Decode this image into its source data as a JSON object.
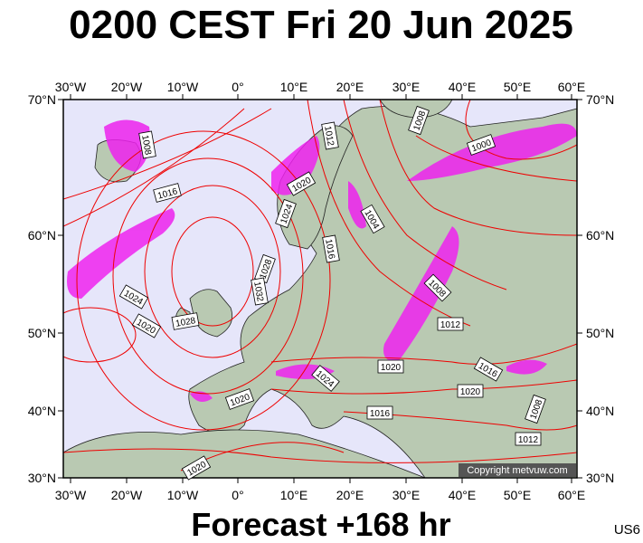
{
  "header": {
    "title": "0200 CEST Fri 20 Jun 2025"
  },
  "map": {
    "lon_labels": [
      "30°W",
      "20°W",
      "10°W",
      "0°",
      "10°E",
      "20°E",
      "30°E",
      "40°E",
      "50°E",
      "60°E"
    ],
    "lat_labels": [
      "70°N",
      "60°N",
      "50°N",
      "40°N",
      "30°N"
    ],
    "isobar_labels": [
      "1008",
      "1012",
      "1008",
      "1000",
      "1016",
      "1020",
      "1024",
      "1004",
      "1016",
      "1028",
      "1032",
      "1008",
      "1024",
      "1020",
      "1028",
      "1012",
      "1020",
      "1024",
      "1016",
      "1020",
      "1020",
      "1016",
      "1008",
      "1012",
      "1020"
    ],
    "copyright": "Copyright metvuw.com"
  },
  "footer": {
    "forecast": "Forecast +168 hr",
    "code": "US6"
  }
}
